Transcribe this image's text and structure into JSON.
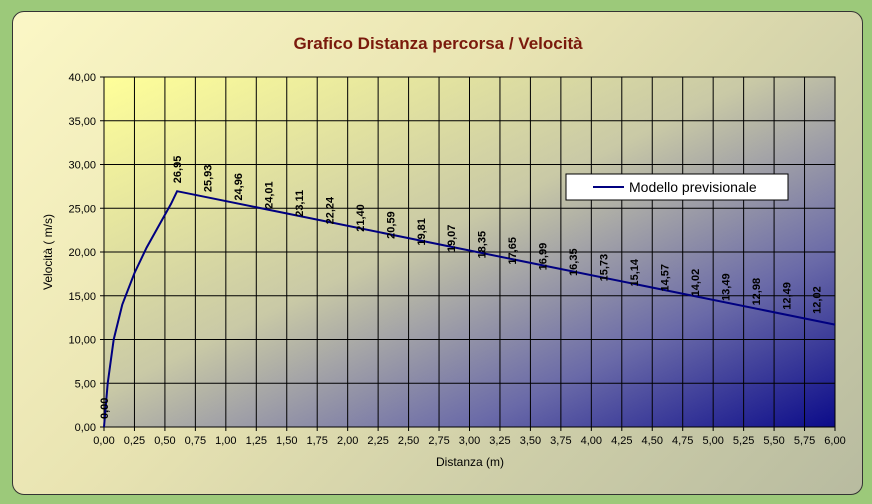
{
  "chart_data": {
    "type": "line",
    "title": "Grafico Distanza percorsa / Velocità",
    "xlabel": "Distanza (m)",
    "ylabel": "Velocità ( m/s)",
    "xlim": [
      0,
      6
    ],
    "ylim": [
      0,
      40
    ],
    "x_ticks": [
      "0,00",
      "0,25",
      "0,50",
      "0,75",
      "1,00",
      "1,25",
      "1,50",
      "1,75",
      "2,00",
      "2,25",
      "2,50",
      "2,75",
      "3,00",
      "3,25",
      "3,50",
      "3,75",
      "4,00",
      "4,25",
      "4,50",
      "4,75",
      "5,00",
      "5,25",
      "5,50",
      "5,75",
      "6,00"
    ],
    "y_ticks": [
      "0,00",
      "5,00",
      "10,00",
      "15,00",
      "20,00",
      "25,00",
      "30,00",
      "35,00",
      "40,00"
    ],
    "grid": true,
    "legend_position": "right",
    "series": [
      {
        "name": "Modello previsionale",
        "color": "#000080",
        "x": [
          0,
          0.03,
          0.08,
          0.15,
          0.25,
          0.35,
          0.45,
          0.55,
          0.6,
          6.0
        ],
        "values": [
          0,
          5,
          10,
          14,
          17.6,
          20.5,
          23,
          25.5,
          26.95,
          11.7
        ]
      }
    ],
    "data_labels": [
      {
        "x": 0.0,
        "y": 0.0,
        "text": "0,00"
      },
      {
        "x": 0.6,
        "y": 26.95,
        "text": "26,95"
      },
      {
        "x": 0.85,
        "y": 25.93,
        "text": "25,93"
      },
      {
        "x": 1.1,
        "y": 24.96,
        "text": "24,96"
      },
      {
        "x": 1.35,
        "y": 24.01,
        "text": "24,01"
      },
      {
        "x": 1.6,
        "y": 23.11,
        "text": "23,11"
      },
      {
        "x": 1.85,
        "y": 22.24,
        "text": "22,24"
      },
      {
        "x": 2.1,
        "y": 21.4,
        "text": "21,40"
      },
      {
        "x": 2.35,
        "y": 20.59,
        "text": "20,59"
      },
      {
        "x": 2.6,
        "y": 19.81,
        "text": "19,81"
      },
      {
        "x": 2.85,
        "y": 19.07,
        "text": "19,07"
      },
      {
        "x": 3.1,
        "y": 18.35,
        "text": "18,35"
      },
      {
        "x": 3.35,
        "y": 17.65,
        "text": "17,65"
      },
      {
        "x": 3.6,
        "y": 16.99,
        "text": "16,99"
      },
      {
        "x": 3.85,
        "y": 16.35,
        "text": "16,35"
      },
      {
        "x": 4.1,
        "y": 15.73,
        "text": "15,73"
      },
      {
        "x": 4.35,
        "y": 15.14,
        "text": "15,14"
      },
      {
        "x": 4.6,
        "y": 14.57,
        "text": "14,57"
      },
      {
        "x": 4.85,
        "y": 14.02,
        "text": "14,02"
      },
      {
        "x": 5.1,
        "y": 13.49,
        "text": "13,49"
      },
      {
        "x": 5.35,
        "y": 12.98,
        "text": "12,98"
      },
      {
        "x": 5.6,
        "y": 12.49,
        "text": "12,49"
      },
      {
        "x": 5.85,
        "y": 12.02,
        "text": "12,02"
      }
    ]
  }
}
